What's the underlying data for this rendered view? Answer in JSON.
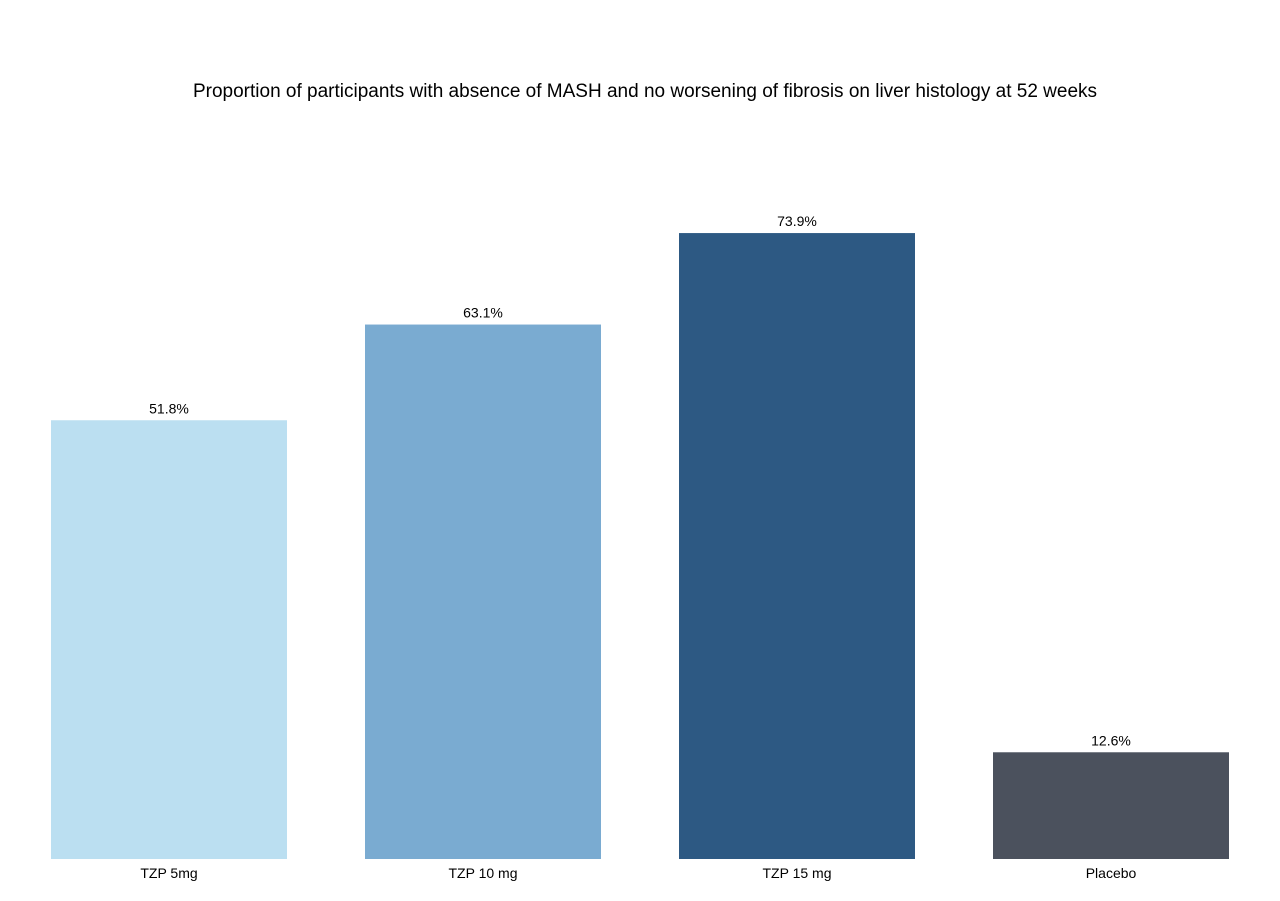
{
  "chart_data": {
    "type": "bar",
    "title": "Proportion of participants with absence of MASH and no worsening of fibrosis on liver histology at 52 weeks",
    "xlabel": "",
    "ylabel": "",
    "categories": [
      "TZP 5mg",
      "TZP 10 mg",
      "TZP 15 mg",
      "Placebo"
    ],
    "values": [
      51.8,
      63.1,
      73.9,
      12.6
    ],
    "data_labels": [
      "51.8%",
      "63.1%",
      "73.9%",
      "12.6%"
    ],
    "colors": [
      "#bbdff1",
      "#7aabd1",
      "#2d5983",
      "#4b515d"
    ],
    "ylim": [
      0,
      100
    ],
    "grid": false,
    "legend": "none",
    "y_axis_visible": false
  }
}
